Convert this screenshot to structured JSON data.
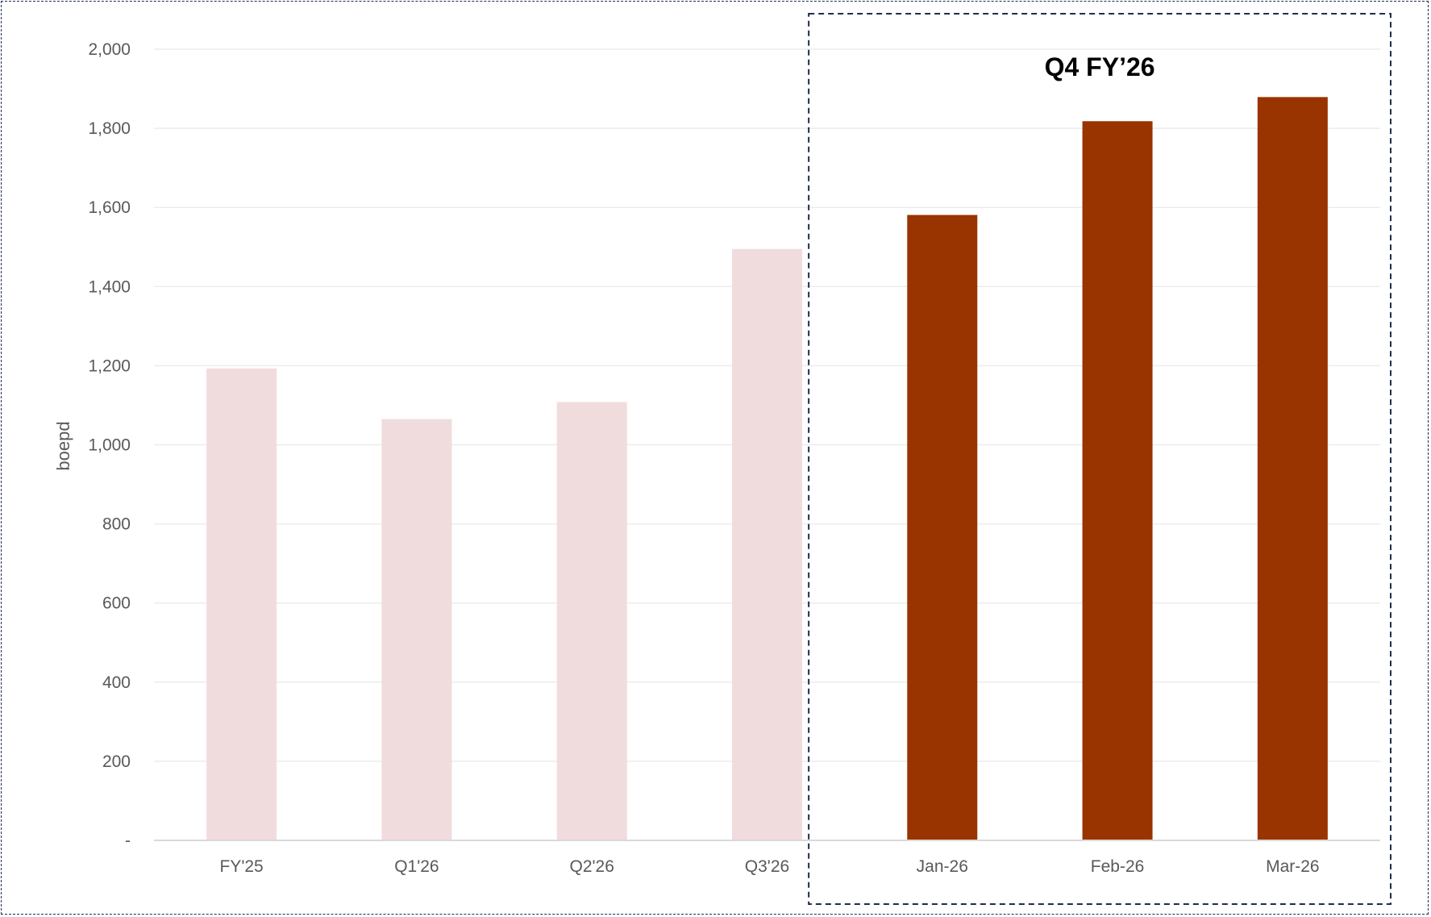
{
  "chart_data": {
    "type": "bar",
    "categories": [
      "FY'25",
      "Q1'26",
      "Q2'26",
      "Q3'26",
      "Jan-26",
      "Feb-26",
      "Mar-26"
    ],
    "values": [
      1193,
      1065,
      1108,
      1495,
      1581,
      1818,
      1879
    ],
    "ylabel": "boepd",
    "ylim": [
      0,
      2000
    ],
    "yticks": [
      0,
      200,
      400,
      600,
      800,
      1000,
      1200,
      1400,
      1600,
      1800,
      2000
    ],
    "ytick_labels": [
      "-",
      "200",
      "400",
      "600",
      "800",
      "1,000",
      "1,200",
      "1,400",
      "1,600",
      "1,800",
      "2,000"
    ],
    "grid": true,
    "colors": {
      "muted": "#f1dcdd",
      "highlight": "#993300",
      "grid": "#ececec",
      "axis": "#d9d9d9",
      "box": "#1f2d4d"
    },
    "highlight_group": {
      "label": "Q4 FY’26",
      "categories": [
        "Jan-26",
        "Feb-26",
        "Mar-26"
      ]
    }
  }
}
